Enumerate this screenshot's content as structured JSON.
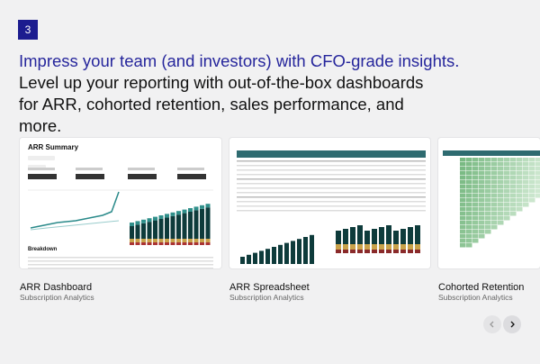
{
  "step": {
    "number": "3"
  },
  "headline": "Impress your team (and investors) with CFO-grade insights.",
  "subheadline": "Level up your reporting with out-of-the-box dashboards for ARR, cohorted retention, sales performance, and more.",
  "cards": [
    {
      "title": "ARR Dashboard",
      "subtitle": "Subscription Analytics",
      "thumb_title": "ARR Summary",
      "thumb_section": "Breakdown"
    },
    {
      "title": "ARR Spreadsheet",
      "subtitle": "Subscription Analytics"
    },
    {
      "title": "Cohorted Retention",
      "subtitle": "Subscription Analytics"
    }
  ]
}
